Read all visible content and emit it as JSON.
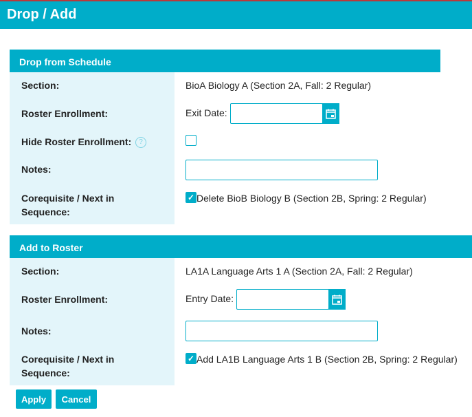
{
  "page": {
    "title": "Drop / Add"
  },
  "drop": {
    "header": "Drop from Schedule",
    "section_label": "Section:",
    "section_value": "BioA Biology A (Section 2A, Fall: 2 Regular)",
    "roster_label": "Roster Enrollment:",
    "exit_date_label": "Exit Date:",
    "exit_date_value": "",
    "hide_label": "Hide Roster Enrollment:",
    "hide_checked": false,
    "notes_label": "Notes:",
    "notes_value": "",
    "coreq_label_1": "Corequisite / Next in",
    "coreq_label_2": "Sequence:",
    "coreq_value": "Delete BioB Biology B (Section 2B, Spring: 2 Regular)",
    "coreq_checked": true
  },
  "add": {
    "header": "Add to Roster",
    "section_label": "Section:",
    "section_value": "LA1A Language Arts 1 A (Section 2A, Fall: 2 Regular)",
    "roster_label": "Roster Enrollment:",
    "entry_date_label": "Entry Date:",
    "entry_date_value": "",
    "notes_label": "Notes:",
    "notes_value": "",
    "coreq_label_1": "Corequisite / Next in",
    "coreq_label_2": "Sequence:",
    "coreq_value": "Add LA1B Language Arts 1 B (Section 2B, Spring: 2 Regular)",
    "coreq_checked": true
  },
  "buttons": {
    "apply": "Apply",
    "cancel": "Cancel"
  },
  "colors": {
    "accent": "#00adc9",
    "label_bg": "#e3f5fa"
  },
  "icons": {
    "calendar": "calendar-icon",
    "help": "help-icon",
    "check": "checkmark-icon"
  }
}
